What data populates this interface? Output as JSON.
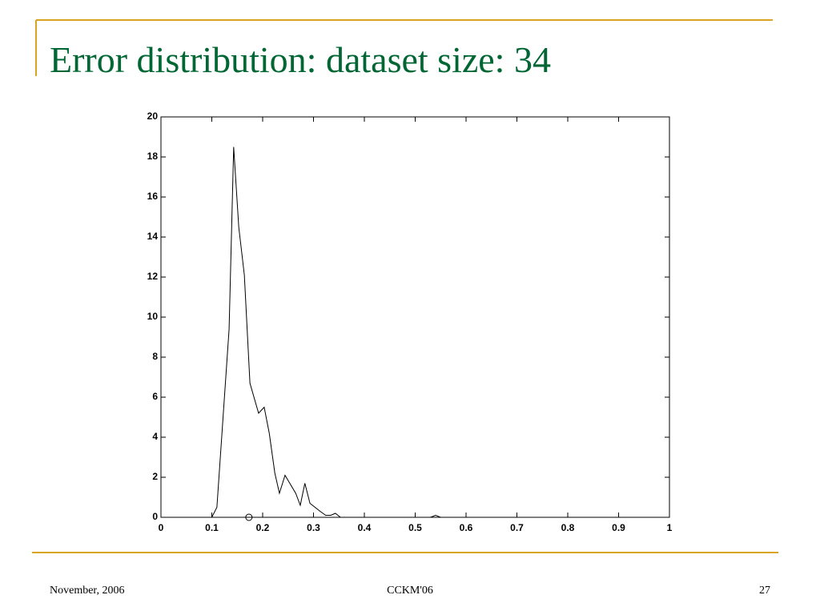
{
  "slide": {
    "title": "Error distribution: dataset size: 34",
    "footer": {
      "left": "November, 2006",
      "center": "CCKM'06",
      "right": "27"
    }
  },
  "chart_data": {
    "type": "line",
    "xlim": [
      0,
      1
    ],
    "ylim": [
      0,
      20
    ],
    "xticks": [
      0,
      0.1,
      0.2,
      0.3,
      0.4,
      0.5,
      0.6,
      0.7,
      0.8,
      0.9,
      1
    ],
    "yticks": [
      0,
      2,
      4,
      6,
      8,
      10,
      12,
      14,
      16,
      18,
      20
    ],
    "grid": false,
    "series": [
      {
        "color": "#000000",
        "marker": "none",
        "x": [
          0,
          0.1,
          0.11,
          0.134,
          0.143,
          0.153,
          0.164,
          0.175,
          0.192,
          0.203,
          0.213,
          0.224,
          0.233,
          0.244,
          0.265,
          0.274,
          0.283,
          0.293,
          0.313,
          0.324,
          0.334,
          0.343,
          0.353,
          0.53,
          0.54,
          0.55,
          1
        ],
        "values": [
          0,
          0,
          0.5,
          9.4,
          18.5,
          14.5,
          12.1,
          6.7,
          5.2,
          5.5,
          4.2,
          2.2,
          1.2,
          2.1,
          1.2,
          0.6,
          1.7,
          0.7,
          0.3,
          0.1,
          0.1,
          0.2,
          0,
          0,
          0.1,
          0,
          0
        ]
      },
      {
        "color": "#000000",
        "marker": "circle",
        "x": [
          0.173
        ],
        "values": [
          0
        ]
      }
    ]
  }
}
